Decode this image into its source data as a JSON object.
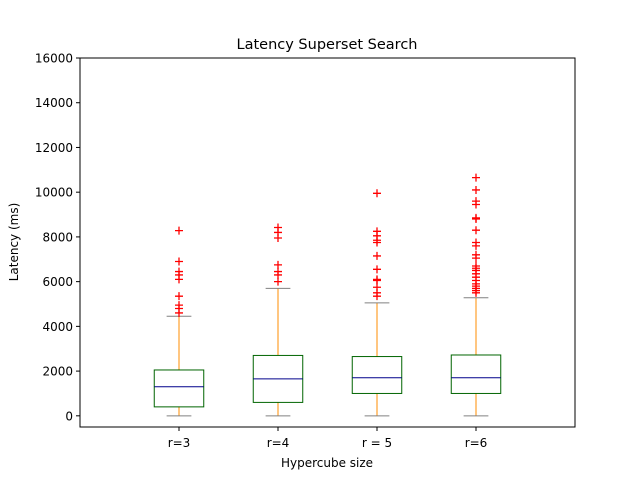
{
  "chart_data": {
    "type": "box",
    "title": "Latency Superset Search",
    "xlabel": "Hypercube size",
    "ylabel": "Latency (ms)",
    "ylim": [
      -500,
      16000
    ],
    "yticks": [
      0,
      2000,
      4000,
      6000,
      8000,
      10000,
      12000,
      14000,
      16000
    ],
    "grid": false,
    "colors": {
      "box": "#006400",
      "median": "#00008b",
      "whisker": "#ff8c00",
      "cap": "#808080",
      "outlier": "#ff0000",
      "axes": "#000000"
    },
    "categories": [
      "r=3",
      "r=4",
      "r = 5",
      "r=6"
    ],
    "boxes": [
      {
        "label": "r=3",
        "whislo": 0,
        "q1": 400,
        "med": 1300,
        "q3": 2050,
        "whishi": 4450,
        "fliers": [
          4600,
          4800,
          4950,
          5350,
          6100,
          6300,
          6450,
          6900,
          8280
        ]
      },
      {
        "label": "r=4",
        "whislo": 0,
        "q1": 600,
        "med": 1650,
        "q3": 2700,
        "whishi": 5700,
        "fliers": [
          6000,
          6300,
          6450,
          6750,
          7950,
          8200,
          8420
        ]
      },
      {
        "label": "r = 5",
        "whislo": 0,
        "q1": 1000,
        "med": 1700,
        "q3": 2650,
        "whishi": 5050,
        "fliers": [
          5350,
          5500,
          5750,
          6050,
          6100,
          6550,
          7150,
          7750,
          7850,
          8050,
          8250,
          9950
        ]
      },
      {
        "label": "r=6",
        "whislo": 0,
        "q1": 1000,
        "med": 1700,
        "q3": 2720,
        "whishi": 5280,
        "fliers": [
          5500,
          5600,
          5700,
          5800,
          5900,
          6050,
          6200,
          6350,
          6500,
          6600,
          6700,
          7050,
          7200,
          7600,
          7750,
          8300,
          8800,
          8850,
          9450,
          9600,
          10100,
          10650
        ]
      }
    ]
  }
}
